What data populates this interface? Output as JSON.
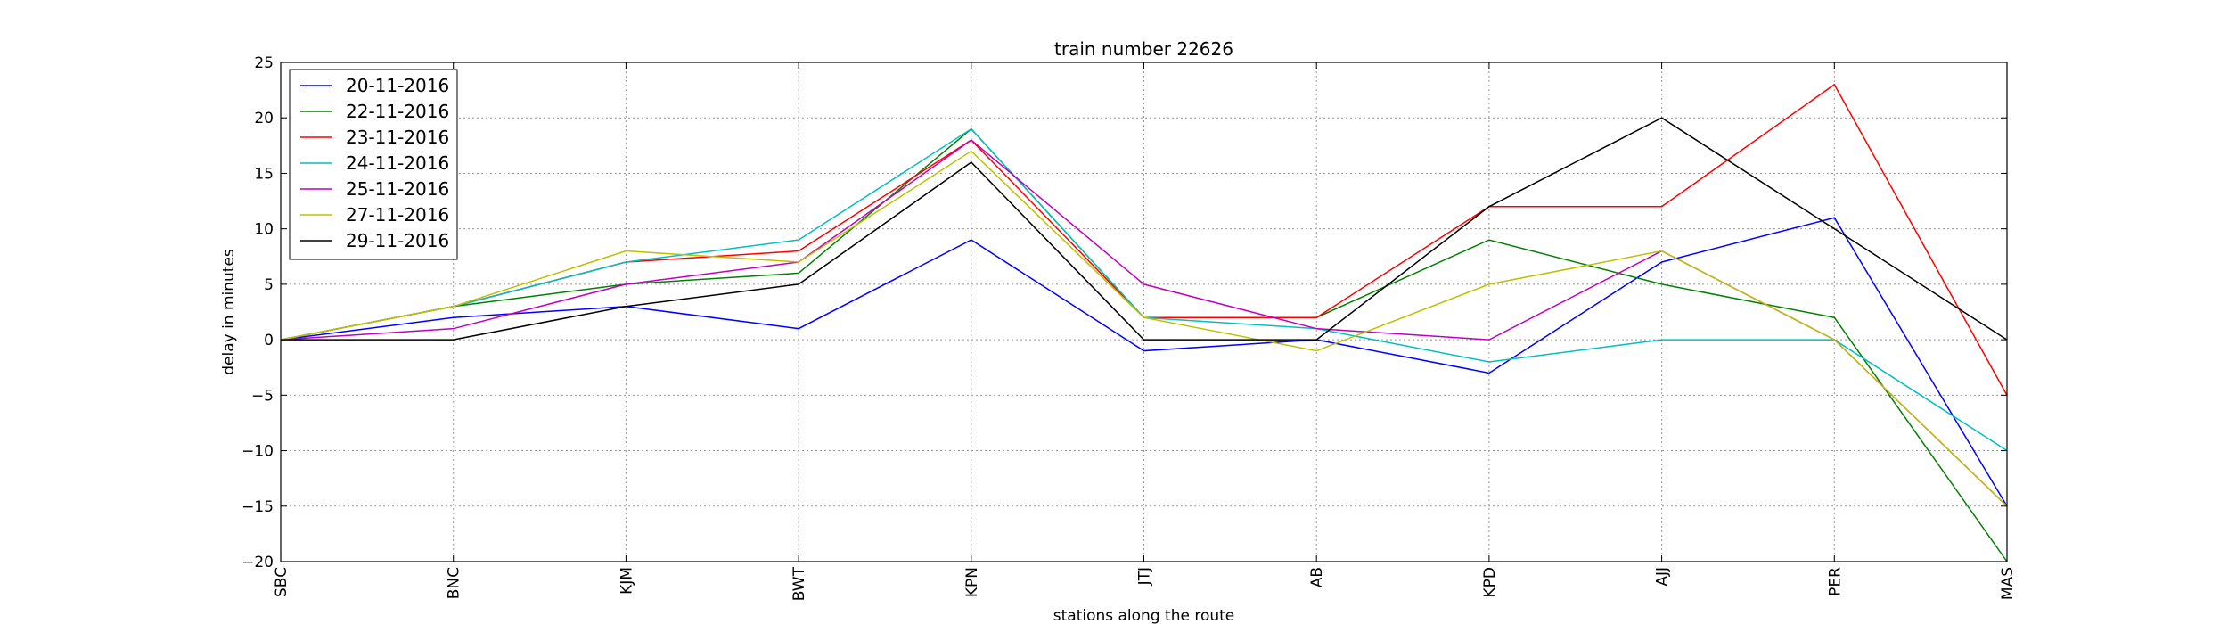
{
  "chart_data": {
    "type": "line",
    "title": "train number 22626",
    "xlabel": "stations along the route",
    "ylabel": "delay in minutes",
    "categories": [
      "SBC",
      "BNC",
      "KJM",
      "BWT",
      "KPN",
      "JTJ",
      "AB",
      "KPD",
      "AJJ",
      "PER",
      "MAS"
    ],
    "ylim": [
      -20,
      25
    ],
    "yticks": [
      -20,
      -15,
      -10,
      -5,
      0,
      5,
      10,
      15,
      20,
      25
    ],
    "ytick_labels": [
      "−20",
      "−15",
      "−10",
      "−5",
      "0",
      "5",
      "10",
      "15",
      "20",
      "25"
    ],
    "grid": true,
    "legend_position": "top-left",
    "series": [
      {
        "name": "20-11-2016",
        "color": "#0000ff",
        "values": [
          0,
          2,
          3,
          1,
          9,
          -1,
          0,
          -3,
          7,
          11,
          -15
        ]
      },
      {
        "name": "22-11-2016",
        "color": "#008000",
        "values": [
          0,
          3,
          5,
          6,
          19,
          2,
          2,
          9,
          5,
          2,
          -20
        ]
      },
      {
        "name": "23-11-2016",
        "color": "#ff0000",
        "values": [
          0,
          3,
          7,
          8,
          18,
          2,
          2,
          12,
          12,
          23,
          -5
        ]
      },
      {
        "name": "24-11-2016",
        "color": "#00bfbf",
        "values": [
          0,
          3,
          7,
          9,
          19,
          2,
          1,
          -2,
          0,
          0,
          -10
        ]
      },
      {
        "name": "25-11-2016",
        "color": "#bf00bf",
        "values": [
          0,
          1,
          5,
          7,
          18,
          5,
          1,
          0,
          8,
          0,
          -15
        ]
      },
      {
        "name": "27-11-2016",
        "color": "#bfbf00",
        "values": [
          0,
          3,
          8,
          7,
          17,
          2,
          -1,
          5,
          8,
          0,
          -15
        ]
      },
      {
        "name": "29-11-2016",
        "color": "#000000",
        "values": [
          0,
          0,
          3,
          5,
          16,
          0,
          0,
          12,
          20,
          10,
          0
        ]
      }
    ]
  }
}
